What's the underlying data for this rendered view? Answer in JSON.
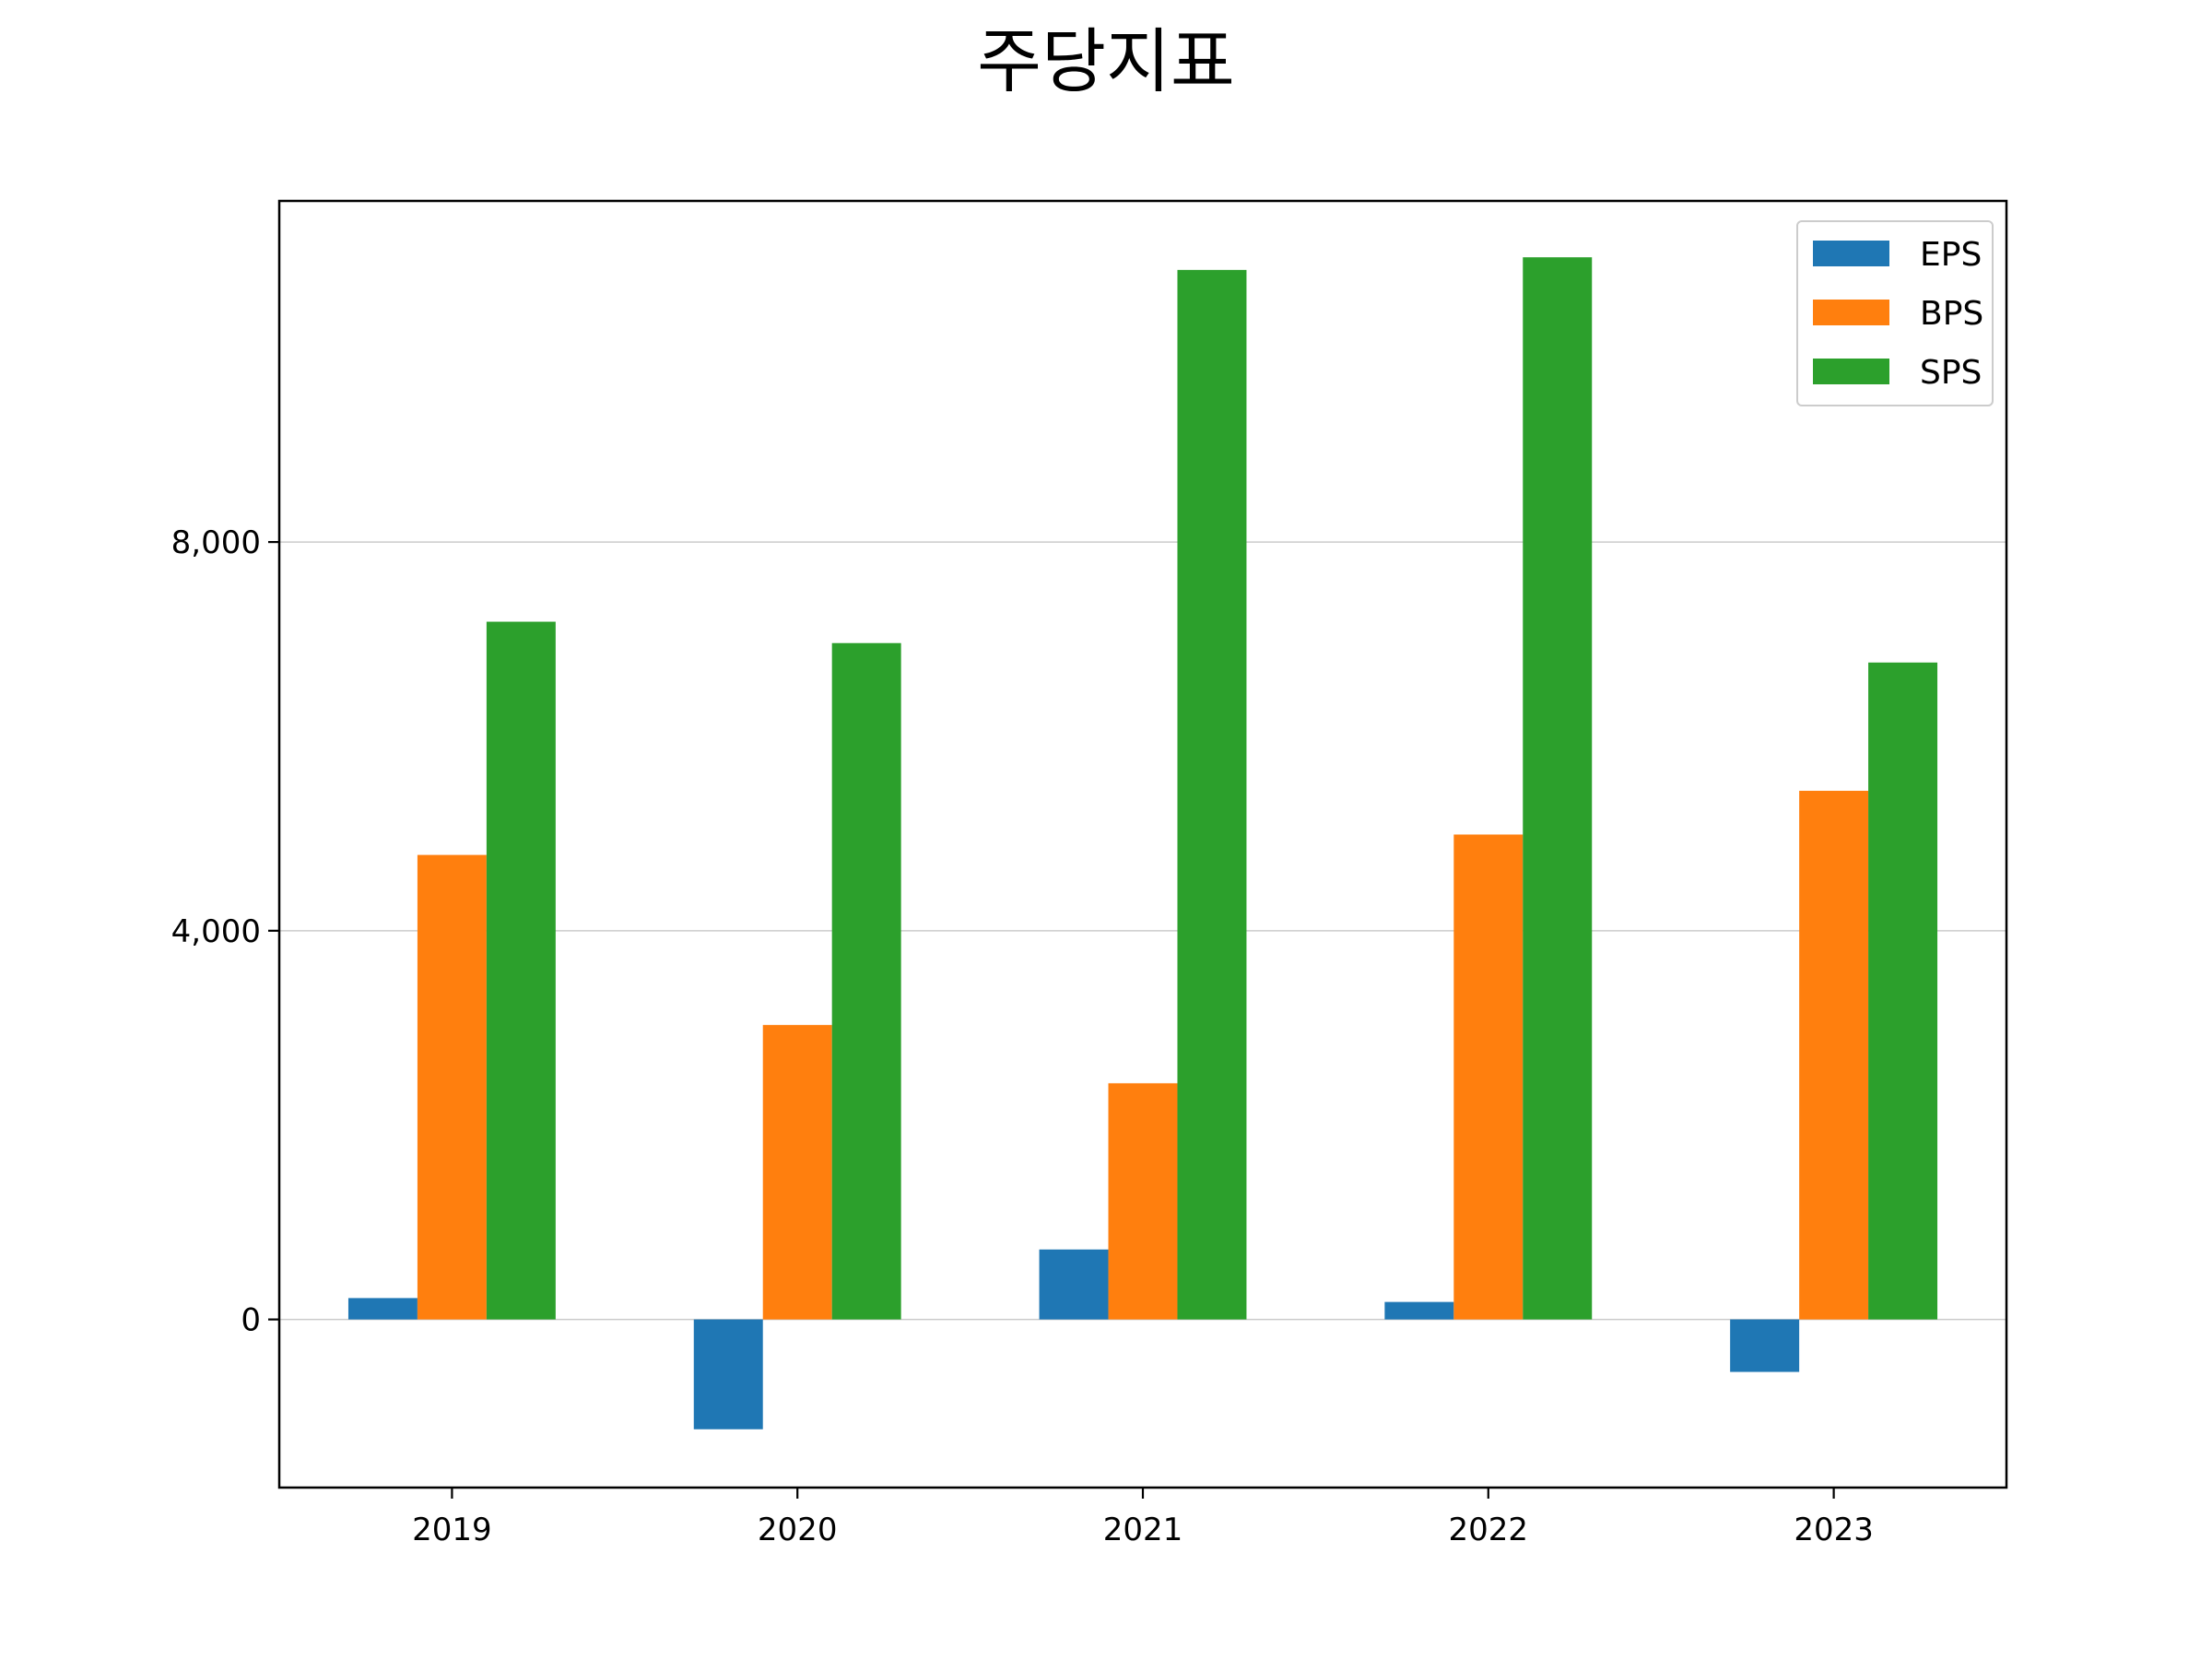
{
  "chart_data": {
    "type": "bar",
    "title": "주당지표",
    "xlabel": "",
    "ylabel": "",
    "categories": [
      "2019",
      "2020",
      "2021",
      "2022",
      "2023"
    ],
    "series": [
      {
        "name": "EPS",
        "color": "#1f77b4",
        "values": [
          220,
          -1130,
          720,
          180,
          -540
        ]
      },
      {
        "name": "BPS",
        "color": "#ff7f0e",
        "values": [
          4780,
          3030,
          2430,
          4990,
          5440
        ]
      },
      {
        "name": "SPS",
        "color": "#2ca02c",
        "values": [
          7180,
          6960,
          10800,
          10930,
          6760
        ]
      }
    ],
    "ylim": [
      -1730,
      11510
    ],
    "yticks": [
      0,
      4000,
      8000
    ],
    "ytick_labels": [
      "0",
      "4,000",
      "8,000"
    ],
    "grid": {
      "y": true,
      "x": false,
      "color": "#cccccc"
    },
    "legend": {
      "position": "top-right"
    }
  }
}
